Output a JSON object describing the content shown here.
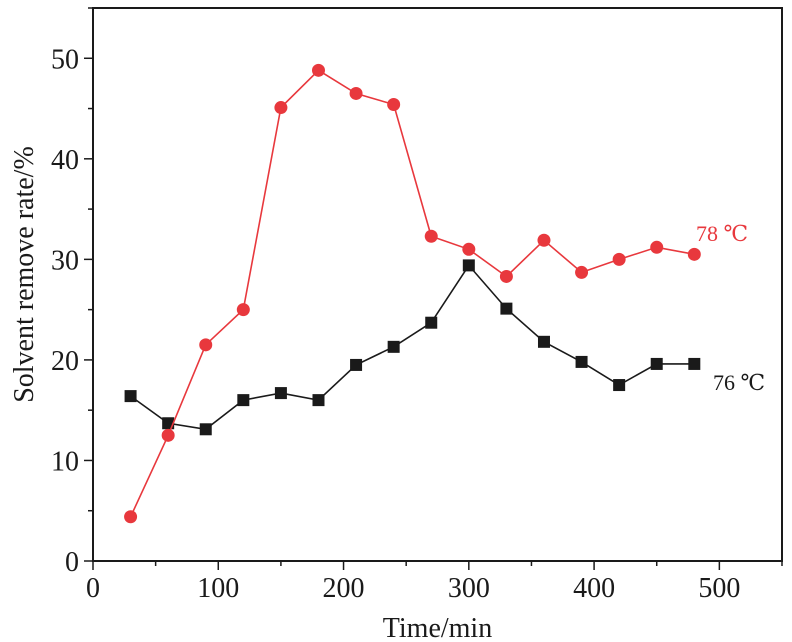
{
  "chart_data": {
    "type": "line",
    "xlabel": "Time/min",
    "ylabel": "Solvent remove rate/%",
    "xlim": [
      0,
      550
    ],
    "ylim": [
      0,
      55
    ],
    "xticks": [
      0,
      100,
      200,
      300,
      400,
      500
    ],
    "yticks": [
      0,
      10,
      20,
      30,
      40,
      50
    ],
    "x": [
      30,
      60,
      90,
      120,
      150,
      180,
      210,
      240,
      270,
      300,
      330,
      360,
      390,
      420,
      450,
      480
    ],
    "grid": false,
    "series": [
      {
        "name": "76 ℃",
        "color": "#1a1a1a",
        "marker": "square",
        "values": [
          16.4,
          13.7,
          13.1,
          16.0,
          16.7,
          16.0,
          19.5,
          21.3,
          23.7,
          29.4,
          25.1,
          21.8,
          19.8,
          17.5,
          19.6,
          19.6
        ]
      },
      {
        "name": "78 ℃",
        "color": "#e8383d",
        "marker": "circle",
        "values": [
          4.4,
          12.5,
          21.5,
          25.0,
          45.1,
          48.8,
          46.5,
          45.4,
          32.3,
          31.0,
          28.3,
          31.9,
          28.7,
          30.0,
          31.2,
          30.5
        ]
      }
    ]
  }
}
